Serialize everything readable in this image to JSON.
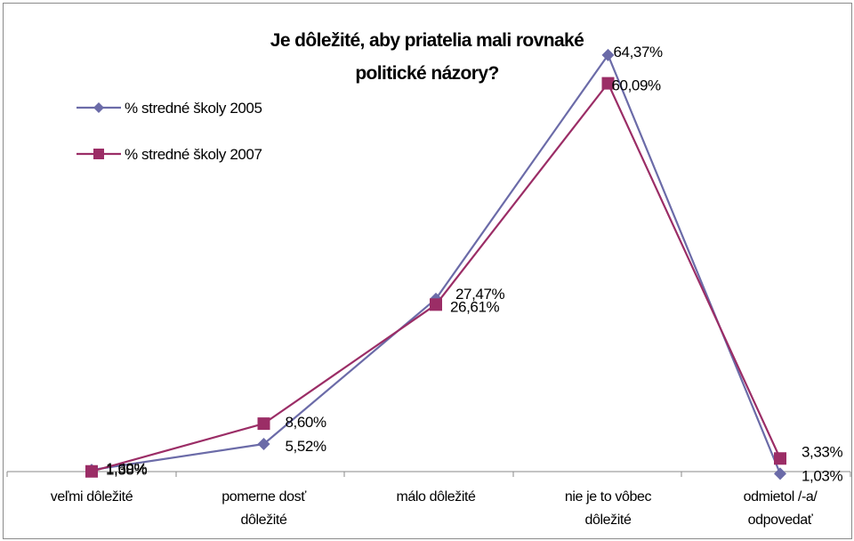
{
  "chart_data": {
    "type": "line",
    "title": "Je dôležité, aby priatelia mali rovnaké politické názory?",
    "title_lines": [
      "Je dôležité, aby priatelia mali rovnaké",
      "politické názory?"
    ],
    "xlabel": "",
    "ylabel": "",
    "categories": [
      "veľmi dôležité",
      "pomerne dosť dôležité",
      "málo dôležité",
      "nie je to vôbec dôležité",
      "odmietol /-a/ odpovedať"
    ],
    "category_lines": [
      [
        "veľmi dôležité"
      ],
      [
        "pomerne dosť",
        "dôležité"
      ],
      [
        "málo dôležité"
      ],
      [
        "nie je to vôbec",
        "dôležité"
      ],
      [
        "odmietol /-a/",
        "odpovedať"
      ]
    ],
    "ylim": [
      0,
      70
    ],
    "grid": false,
    "legend_position": "top-left",
    "series": [
      {
        "name": "% stredné školy 2005",
        "color": "#6b6ba8",
        "marker": "diamond",
        "values": [
          1.6,
          5.52,
          27.47,
          64.37,
          1.03
        ],
        "labels": [
          "1,60%",
          "5,52%",
          "27,47%",
          "64,37%",
          "1,03%"
        ]
      },
      {
        "name": "% stredné školy 2007",
        "color": "#9b2d66",
        "marker": "square",
        "values": [
          1.38,
          8.6,
          26.61,
          60.09,
          3.33
        ],
        "labels": [
          "1,38%",
          "8,60%",
          "26,61%",
          "60,09%",
          "3,33%"
        ]
      }
    ]
  }
}
